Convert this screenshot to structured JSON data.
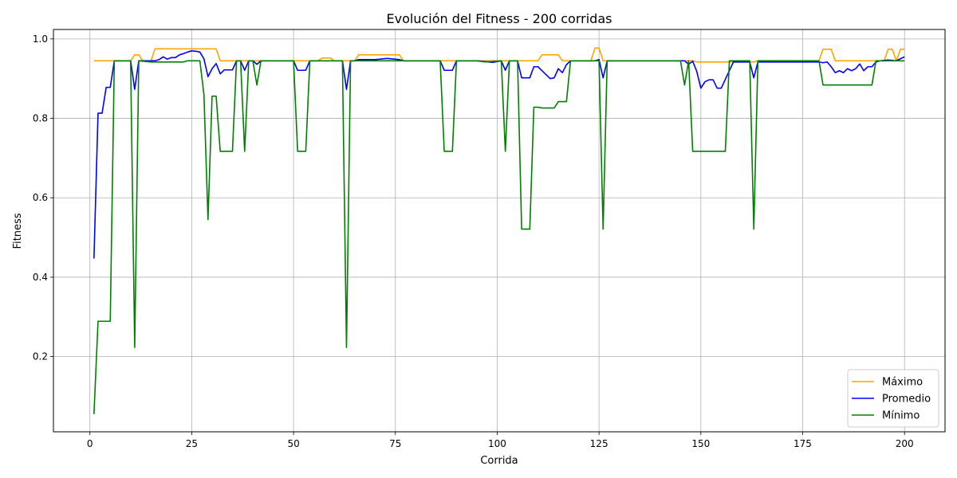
{
  "chart_data": {
    "type": "line",
    "title": "Evolución del Fitness - 200 corridas",
    "xlabel": "Corrida",
    "ylabel": "Fitness",
    "xlim": [
      -8.95,
      209.95
    ],
    "ylim": [
      0.0106,
      1.0238
    ],
    "xticks": [
      0,
      25,
      50,
      75,
      100,
      125,
      150,
      175,
      200
    ],
    "yticks": [
      0.2,
      0.4,
      0.6,
      0.8,
      1.0
    ],
    "ytick_labels": [
      "0.2",
      "0.4",
      "0.6",
      "0.8",
      "1.0"
    ],
    "grid": true,
    "legend_position": "lower-right",
    "series": [
      {
        "name": "Máximo",
        "color": "#ffa500",
        "points": [
          [
            1,
            0.945
          ],
          [
            10,
            0.945
          ],
          [
            11,
            0.96
          ],
          [
            12,
            0.96
          ],
          [
            13,
            0.945
          ],
          [
            15,
            0.945
          ],
          [
            16,
            0.975
          ],
          [
            27,
            0.975
          ],
          [
            28,
            0.975
          ],
          [
            31,
            0.975
          ],
          [
            32,
            0.945
          ],
          [
            56,
            0.945
          ],
          [
            57,
            0.952
          ],
          [
            59,
            0.952
          ],
          [
            60,
            0.945
          ],
          [
            65,
            0.945
          ],
          [
            66,
            0.96
          ],
          [
            76,
            0.96
          ],
          [
            77,
            0.945
          ],
          [
            110,
            0.945
          ],
          [
            111,
            0.96
          ],
          [
            115,
            0.96
          ],
          [
            116,
            0.945
          ],
          [
            123,
            0.945
          ],
          [
            124,
            0.977
          ],
          [
            125,
            0.977
          ],
          [
            126,
            0.945
          ],
          [
            146,
            0.945
          ],
          [
            148,
            0.945
          ],
          [
            149,
            0.942
          ],
          [
            163,
            0.942
          ],
          [
            164,
            0.945
          ],
          [
            179,
            0.945
          ],
          [
            180,
            0.974
          ],
          [
            182,
            0.974
          ],
          [
            183,
            0.945
          ],
          [
            195,
            0.945
          ],
          [
            196,
            0.974
          ],
          [
            197,
            0.974
          ],
          [
            198,
            0.945
          ],
          [
            199,
            0.974
          ],
          [
            200,
            0.974
          ]
        ]
      },
      {
        "name": "Promedio",
        "color": "#0000ff",
        "points": [
          [
            1,
            0.447
          ],
          [
            2,
            0.813
          ],
          [
            3,
            0.813
          ],
          [
            4,
            0.878
          ],
          [
            5,
            0.878
          ],
          [
            6,
            0.945
          ],
          [
            10,
            0.945
          ],
          [
            11,
            0.873
          ],
          [
            12,
            0.945
          ],
          [
            16,
            0.945
          ],
          [
            17,
            0.948
          ],
          [
            18,
            0.955
          ],
          [
            19,
            0.949
          ],
          [
            20,
            0.953
          ],
          [
            21,
            0.953
          ],
          [
            22,
            0.96
          ],
          [
            23,
            0.963
          ],
          [
            24,
            0.967
          ],
          [
            25,
            0.97
          ],
          [
            26,
            0.969
          ],
          [
            27,
            0.967
          ],
          [
            28,
            0.95
          ],
          [
            29,
            0.905
          ],
          [
            30,
            0.925
          ],
          [
            31,
            0.938
          ],
          [
            32,
            0.912
          ],
          [
            33,
            0.922
          ],
          [
            35,
            0.922
          ],
          [
            36,
            0.945
          ],
          [
            37,
            0.945
          ],
          [
            38,
            0.921
          ],
          [
            39,
            0.945
          ],
          [
            40,
            0.945
          ],
          [
            41,
            0.936
          ],
          [
            42,
            0.945
          ],
          [
            50,
            0.945
          ],
          [
            51,
            0.921
          ],
          [
            53,
            0.921
          ],
          [
            54,
            0.945
          ],
          [
            62,
            0.945
          ],
          [
            63,
            0.873
          ],
          [
            64,
            0.945
          ],
          [
            65,
            0.945
          ],
          [
            66,
            0.948
          ],
          [
            70,
            0.948
          ],
          [
            73,
            0.951
          ],
          [
            76,
            0.948
          ],
          [
            77,
            0.945
          ],
          [
            86,
            0.945
          ],
          [
            87,
            0.921
          ],
          [
            89,
            0.921
          ],
          [
            90,
            0.945
          ],
          [
            95,
            0.945
          ],
          [
            99,
            0.941
          ],
          [
            101,
            0.945
          ],
          [
            102,
            0.921
          ],
          [
            103,
            0.945
          ],
          [
            105,
            0.945
          ],
          [
            106,
            0.902
          ],
          [
            108,
            0.902
          ],
          [
            109,
            0.93
          ],
          [
            110,
            0.93
          ],
          [
            111,
            0.92
          ],
          [
            112,
            0.91
          ],
          [
            113,
            0.9
          ],
          [
            114,
            0.902
          ],
          [
            115,
            0.925
          ],
          [
            116,
            0.915
          ],
          [
            117,
            0.935
          ],
          [
            118,
            0.945
          ],
          [
            124,
            0.945
          ],
          [
            125,
            0.948
          ],
          [
            126,
            0.902
          ],
          [
            127,
            0.945
          ],
          [
            133,
            0.945
          ],
          [
            146,
            0.945
          ],
          [
            147,
            0.936
          ],
          [
            148,
            0.944
          ],
          [
            149,
            0.918
          ],
          [
            150,
            0.876
          ],
          [
            151,
            0.892
          ],
          [
            152,
            0.897
          ],
          [
            153,
            0.897
          ],
          [
            154,
            0.876
          ],
          [
            155,
            0.876
          ],
          [
            157,
            0.92
          ],
          [
            158,
            0.942
          ],
          [
            162,
            0.942
          ],
          [
            163,
            0.902
          ],
          [
            164,
            0.942
          ],
          [
            165,
            0.942
          ],
          [
            179,
            0.942
          ],
          [
            180,
            0.94
          ],
          [
            181,
            0.942
          ],
          [
            182,
            0.93
          ],
          [
            183,
            0.915
          ],
          [
            184,
            0.92
          ],
          [
            185,
            0.915
          ],
          [
            186,
            0.925
          ],
          [
            187,
            0.92
          ],
          [
            188,
            0.925
          ],
          [
            189,
            0.937
          ],
          [
            190,
            0.92
          ],
          [
            191,
            0.93
          ],
          [
            192,
            0.93
          ],
          [
            193,
            0.942
          ],
          [
            194,
            0.945
          ],
          [
            196,
            0.947
          ],
          [
            198,
            0.945
          ],
          [
            199,
            0.95
          ],
          [
            200,
            0.955
          ]
        ]
      },
      {
        "name": "Mínimo",
        "color": "#008000",
        "points": [
          [
            1,
            0.055
          ],
          [
            2,
            0.289
          ],
          [
            5,
            0.289
          ],
          [
            6,
            0.945
          ],
          [
            10,
            0.945
          ],
          [
            11,
            0.223
          ],
          [
            12,
            0.945
          ],
          [
            15,
            0.942
          ],
          [
            23,
            0.942
          ],
          [
            24,
            0.945
          ],
          [
            27,
            0.945
          ],
          [
            28,
            0.86
          ],
          [
            29,
            0.545
          ],
          [
            30,
            0.856
          ],
          [
            31,
            0.856
          ],
          [
            32,
            0.717
          ],
          [
            35,
            0.717
          ],
          [
            36,
            0.945
          ],
          [
            37,
            0.945
          ],
          [
            38,
            0.717
          ],
          [
            39,
            0.945
          ],
          [
            40,
            0.945
          ],
          [
            41,
            0.884
          ],
          [
            42,
            0.945
          ],
          [
            50,
            0.945
          ],
          [
            51,
            0.717
          ],
          [
            53,
            0.717
          ],
          [
            54,
            0.945
          ],
          [
            62,
            0.945
          ],
          [
            63,
            0.223
          ],
          [
            64,
            0.945
          ],
          [
            86,
            0.945
          ],
          [
            87,
            0.717
          ],
          [
            89,
            0.717
          ],
          [
            90,
            0.945
          ],
          [
            95,
            0.945
          ],
          [
            97,
            0.942
          ],
          [
            101,
            0.945
          ],
          [
            102,
            0.717
          ],
          [
            103,
            0.945
          ],
          [
            105,
            0.945
          ],
          [
            106,
            0.521
          ],
          [
            108,
            0.521
          ],
          [
            109,
            0.828
          ],
          [
            110,
            0.828
          ],
          [
            111,
            0.826
          ],
          [
            114,
            0.826
          ],
          [
            115,
            0.842
          ],
          [
            117,
            0.842
          ],
          [
            118,
            0.945
          ],
          [
            125,
            0.945
          ],
          [
            126,
            0.521
          ],
          [
            127,
            0.945
          ],
          [
            133,
            0.945
          ],
          [
            145,
            0.945
          ],
          [
            146,
            0.884
          ],
          [
            147,
            0.945
          ],
          [
            148,
            0.717
          ],
          [
            156,
            0.717
          ],
          [
            157,
            0.945
          ],
          [
            162,
            0.945
          ],
          [
            163,
            0.521
          ],
          [
            164,
            0.945
          ],
          [
            179,
            0.945
          ],
          [
            180,
            0.884
          ],
          [
            192,
            0.884
          ],
          [
            193,
            0.945
          ],
          [
            200,
            0.945
          ]
        ]
      }
    ]
  }
}
